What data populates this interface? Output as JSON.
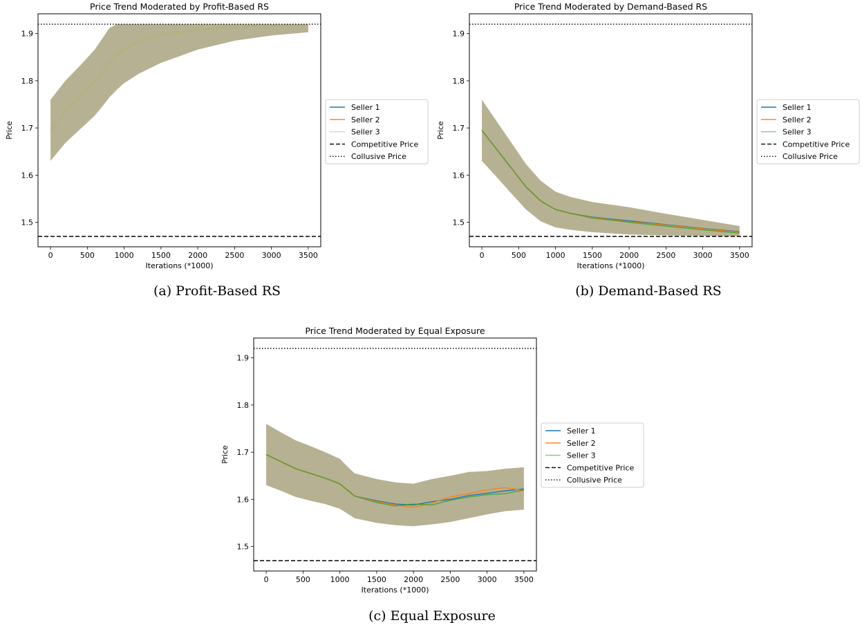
{
  "figures": [
    {
      "caption": "(a) Profit-Based RS"
    },
    {
      "caption": "(b) Demand-Based RS"
    },
    {
      "caption": "(c) Equal Exposure"
    }
  ],
  "chart_data": [
    {
      "type": "line",
      "title": "Price Trend Moderated by Profit-Based RS",
      "xlabel": "Iterations (*1000)",
      "ylabel": "Price",
      "xlim": [
        -170,
        3670
      ],
      "ylim": [
        1.448,
        1.942
      ],
      "xticks": [
        0,
        500,
        1000,
        1500,
        2000,
        2500,
        3000,
        3500
      ],
      "yticks": [
        1.5,
        1.6,
        1.7,
        1.8,
        1.9
      ],
      "legend": "outside-right",
      "grid": false,
      "series": [
        {
          "name": "Seller 1",
          "color": "#1f77b4",
          "x": [
            0,
            200,
            400,
            600,
            700,
            800,
            900,
            1000,
            1200,
            1500,
            2000,
            2500,
            3000,
            3500
          ],
          "y": [
            1.695,
            1.735,
            1.765,
            1.797,
            1.818,
            1.84,
            1.856,
            1.868,
            1.884,
            1.897,
            1.908,
            1.914,
            1.917,
            1.919
          ]
        },
        {
          "name": "Seller 2",
          "color": "#ff7f0e",
          "x": [
            0,
            200,
            400,
            600,
            700,
            800,
            900,
            1000,
            1200,
            1500,
            2000,
            2500,
            3000,
            3500
          ],
          "y": [
            1.695,
            1.735,
            1.765,
            1.797,
            1.818,
            1.84,
            1.856,
            1.868,
            1.884,
            1.897,
            1.908,
            1.914,
            1.917,
            1.919
          ]
        },
        {
          "name": "Seller 3",
          "color": "#98d19a",
          "x": [
            0,
            200,
            400,
            600,
            700,
            800,
            900,
            1000,
            1200,
            1500,
            2000,
            2500,
            3000,
            3500
          ],
          "y": [
            1.695,
            1.735,
            1.765,
            1.797,
            1.818,
            1.84,
            1.856,
            1.868,
            1.884,
            1.897,
            1.908,
            1.914,
            1.917,
            1.919
          ]
        }
      ],
      "band": {
        "x": [
          0,
          200,
          400,
          600,
          700,
          800,
          900,
          1000,
          1200,
          1500,
          2000,
          2500,
          3000,
          3500
        ],
        "lower": [
          1.63,
          1.668,
          1.697,
          1.726,
          1.745,
          1.765,
          1.781,
          1.795,
          1.815,
          1.838,
          1.866,
          1.885,
          1.896,
          1.903
        ],
        "upper": [
          1.76,
          1.8,
          1.832,
          1.866,
          1.889,
          1.912,
          1.92,
          1.92,
          1.92,
          1.92,
          1.92,
          1.92,
          1.92,
          1.92
        ]
      },
      "reference_lines": [
        {
          "name": "Competitive Price",
          "value": 1.47,
          "style": "dashed"
        },
        {
          "name": "Collusive Price",
          "value": 1.92,
          "style": "dotted"
        }
      ]
    },
    {
      "type": "line",
      "title": "Price Trend Moderated by Demand-Based RS",
      "xlabel": "Iterations (*1000)",
      "ylabel": "Price",
      "xlim": [
        -170,
        3670
      ],
      "ylim": [
        1.448,
        1.942
      ],
      "xticks": [
        0,
        500,
        1000,
        1500,
        2000,
        2500,
        3000,
        3500
      ],
      "yticks": [
        1.5,
        1.6,
        1.7,
        1.8,
        1.9
      ],
      "legend": "outside-right",
      "grid": false,
      "series": [
        {
          "name": "Seller 1",
          "color": "#1f77b4",
          "x": [
            0,
            200,
            400,
            600,
            800,
            1000,
            1200,
            1500,
            2000,
            2500,
            3000,
            3500
          ],
          "y": [
            1.695,
            1.655,
            1.615,
            1.575,
            1.545,
            1.527,
            1.519,
            1.511,
            1.503,
            1.495,
            1.487,
            1.48
          ]
        },
        {
          "name": "Seller 2",
          "color": "#ff7f0e",
          "x": [
            0,
            200,
            400,
            600,
            800,
            1000,
            1200,
            1500,
            2000,
            2500,
            3000,
            3500
          ],
          "y": [
            1.695,
            1.655,
            1.615,
            1.575,
            1.545,
            1.527,
            1.519,
            1.51,
            1.501,
            1.494,
            1.486,
            1.479
          ]
        },
        {
          "name": "Seller 3",
          "color": "#2ca02c",
          "x": [
            0,
            200,
            400,
            600,
            800,
            1000,
            1200,
            1500,
            2000,
            2500,
            3000,
            3500
          ],
          "y": [
            1.695,
            1.655,
            1.615,
            1.575,
            1.545,
            1.527,
            1.519,
            1.509,
            1.5,
            1.492,
            1.484,
            1.477
          ]
        }
      ],
      "band": {
        "x": [
          0,
          200,
          400,
          600,
          800,
          1000,
          1200,
          1500,
          2000,
          2500,
          3000,
          3500
        ],
        "lower": [
          1.63,
          1.596,
          1.561,
          1.527,
          1.502,
          1.489,
          1.484,
          1.479,
          1.474,
          1.472,
          1.471,
          1.47
        ],
        "upper": [
          1.76,
          1.714,
          1.669,
          1.623,
          1.588,
          1.565,
          1.554,
          1.543,
          1.532,
          1.518,
          1.505,
          1.492
        ]
      },
      "reference_lines": [
        {
          "name": "Competitive Price",
          "value": 1.47,
          "style": "dashed"
        },
        {
          "name": "Collusive Price",
          "value": 1.92,
          "style": "dotted"
        }
      ]
    },
    {
      "type": "line",
      "title": "Price Trend Moderated by Equal Exposure",
      "xlabel": "Iterations (*1000)",
      "ylabel": "Price",
      "xlim": [
        -170,
        3670
      ],
      "ylim": [
        1.448,
        1.942
      ],
      "xticks": [
        0,
        500,
        1000,
        1500,
        2000,
        2500,
        3000,
        3500
      ],
      "yticks": [
        1.5,
        1.6,
        1.7,
        1.8,
        1.9
      ],
      "legend": "outside-right",
      "grid": false,
      "series": [
        {
          "name": "Seller 1",
          "color": "#1f77b4",
          "x": [
            0,
            200,
            400,
            600,
            800,
            1000,
            1100,
            1200,
            1500,
            1750,
            2000,
            2250,
            2500,
            2750,
            3000,
            3250,
            3500
          ],
          "y": [
            1.695,
            1.68,
            1.665,
            1.655,
            1.645,
            1.633,
            1.62,
            1.607,
            1.597,
            1.59,
            1.588,
            1.595,
            1.6,
            1.608,
            1.613,
            1.618,
            1.622
          ]
        },
        {
          "name": "Seller 2",
          "color": "#ff7f0e",
          "x": [
            0,
            200,
            400,
            600,
            800,
            1000,
            1100,
            1200,
            1500,
            1750,
            2000,
            2250,
            2500,
            2750,
            3000,
            3250,
            3500
          ],
          "y": [
            1.695,
            1.68,
            1.665,
            1.655,
            1.645,
            1.633,
            1.62,
            1.607,
            1.595,
            1.588,
            1.583,
            1.592,
            1.605,
            1.612,
            1.62,
            1.625,
            1.618
          ]
        },
        {
          "name": "Seller 3",
          "color": "#2ca02c",
          "x": [
            0,
            200,
            400,
            600,
            800,
            1000,
            1100,
            1200,
            1500,
            1750,
            2000,
            2250,
            2500,
            2750,
            3000,
            3250,
            3500
          ],
          "y": [
            1.695,
            1.68,
            1.665,
            1.655,
            1.645,
            1.633,
            1.62,
            1.607,
            1.593,
            1.586,
            1.59,
            1.588,
            1.598,
            1.605,
            1.61,
            1.612,
            1.62
          ]
        }
      ],
      "band": {
        "x": [
          0,
          200,
          400,
          600,
          800,
          1000,
          1100,
          1200,
          1500,
          1750,
          2000,
          2250,
          2500,
          2750,
          3000,
          3250,
          3500
        ],
        "lower": [
          1.63,
          1.618,
          1.605,
          1.597,
          1.59,
          1.58,
          1.57,
          1.56,
          1.55,
          1.545,
          1.543,
          1.547,
          1.552,
          1.56,
          1.568,
          1.575,
          1.578
        ],
        "upper": [
          1.76,
          1.742,
          1.725,
          1.713,
          1.7,
          1.686,
          1.67,
          1.655,
          1.643,
          1.636,
          1.633,
          1.643,
          1.65,
          1.658,
          1.66,
          1.665,
          1.668
        ]
      },
      "reference_lines": [
        {
          "name": "Competitive Price",
          "value": 1.47,
          "style": "dashed"
        },
        {
          "name": "Collusive Price",
          "value": 1.92,
          "style": "dotted"
        }
      ]
    }
  ]
}
